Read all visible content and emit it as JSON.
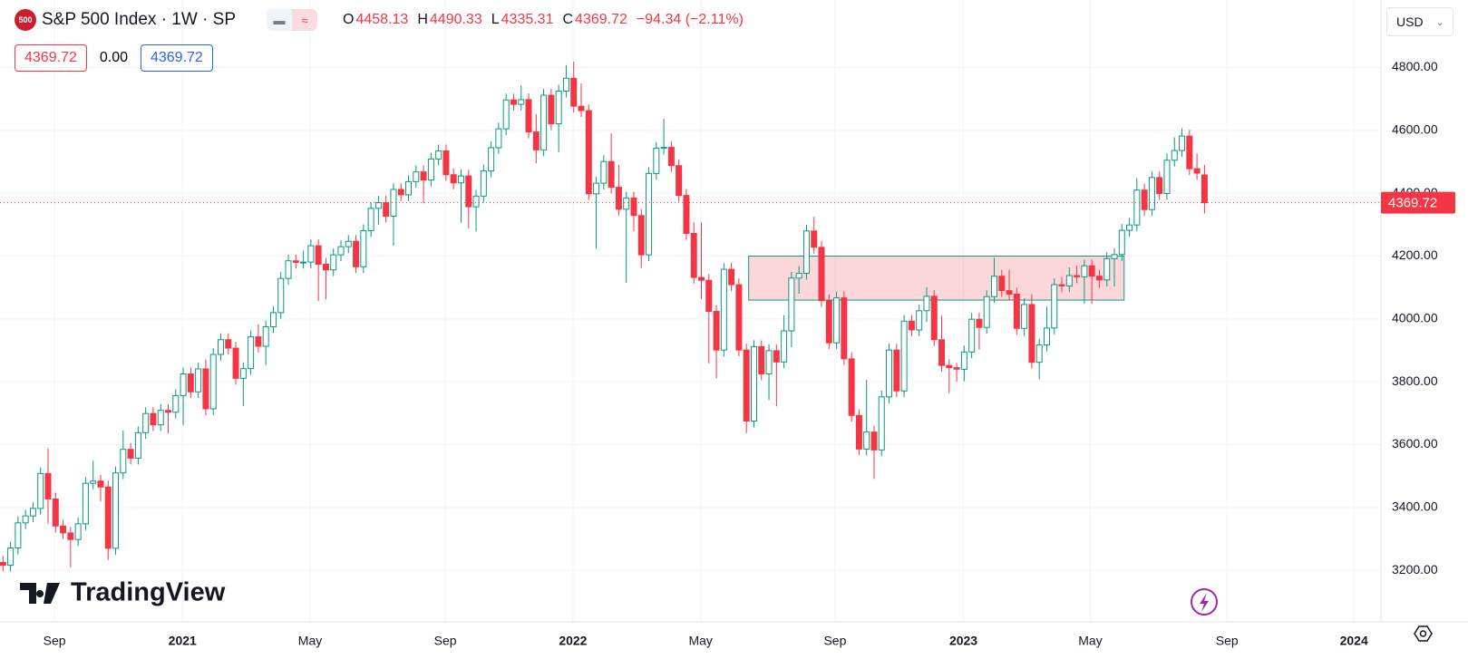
{
  "header": {
    "symbol_icon": "500",
    "title": "S&P 500 Index · 1W · SP",
    "ohlc_labels": [
      "O",
      "H",
      "L",
      "C"
    ],
    "change": "−94.34 (−2.11%)",
    "spread": "0.00",
    "currency": "USD",
    "brand": "TradingView"
  },
  "chart_data": {
    "type": "candlestick",
    "series": [
      {
        "up_color": "#089981",
        "down_color": "#f23645",
        "open": [
          3225,
          3216,
          3271,
          3351,
          3373,
          3397,
          3508,
          3427,
          3341,
          3319,
          3298,
          3348,
          3477,
          3484,
          3465,
          3270,
          3510,
          3585,
          3557,
          3638,
          3699,
          3663,
          3709,
          3703,
          3756,
          3825,
          3768,
          3841,
          3714,
          3887,
          3934,
          3907,
          3811,
          3842,
          3943,
          3913,
          3975,
          4020,
          4129,
          4185,
          4180,
          4181,
          4233,
          4174,
          4156,
          4204,
          4230,
          4247,
          4166,
          4281,
          4352,
          4370,
          4327,
          4412,
          4395,
          4437,
          4468,
          4442,
          4509,
          4535,
          4459,
          4433,
          4455,
          4357,
          4391,
          4471,
          4545,
          4605,
          4697,
          4683,
          4698,
          4595,
          4538,
          4712,
          4621,
          4725,
          4766,
          4677,
          4663,
          4398,
          4432,
          4501,
          4419,
          4349,
          4385,
          4329,
          4204,
          4463,
          4543,
          4546,
          4488,
          4393,
          4272,
          4132,
          4123,
          4024,
          3901,
          4158,
          4109,
          3901,
          3675,
          3912,
          3825,
          3899,
          3863,
          3962,
          4130,
          4145,
          4280,
          4228,
          4058,
          3924,
          4067,
          3873,
          3693,
          3586,
          3640,
          3583,
          3752,
          3901,
          3771,
          3993,
          3965,
          4026,
          4072,
          3934,
          3852,
          3845,
          3840,
          3895,
          3999,
          3973,
          4071,
          4136,
          4090,
          4079,
          3970,
          4046,
          3862,
          3917,
          3971,
          4109,
          4105,
          4138,
          4134,
          4169,
          4136,
          4124,
          4192,
          4205,
          4282,
          4299,
          4410,
          4348,
          4450,
          4399,
          4505,
          4536,
          4582,
          4478,
          4458.13
        ],
        "high": [
          3245,
          3291,
          3371,
          3393,
          3417,
          3528,
          3588,
          3447,
          3361,
          3339,
          3368,
          3497,
          3549,
          3504,
          3485,
          3530,
          3645,
          3605,
          3658,
          3719,
          3719,
          3729,
          3729,
          3776,
          3845,
          3845,
          3861,
          3871,
          3907,
          3954,
          3954,
          3927,
          3862,
          3963,
          3983,
          3995,
          4040,
          4149,
          4205,
          4205,
          4218,
          4253,
          4253,
          4194,
          4224,
          4250,
          4267,
          4267,
          4301,
          4372,
          4392,
          4393,
          4432,
          4432,
          4457,
          4488,
          4488,
          4529,
          4555,
          4555,
          4479,
          4475,
          4475,
          4411,
          4491,
          4565,
          4625,
          4717,
          4717,
          4743,
          4718,
          4652,
          4732,
          4732,
          4745,
          4808,
          4819,
          4749,
          4683,
          4452,
          4521,
          4590,
          4490,
          4405,
          4405,
          4349,
          4483,
          4563,
          4637,
          4566,
          4508,
          4413,
          4308,
          4307,
          4143,
          4044,
          4178,
          4178,
          4129,
          3921,
          3932,
          3932,
          3919,
          3919,
          4012,
          4150,
          4168,
          4300,
          4325,
          4248,
          4078,
          4087,
          4087,
          3893,
          3713,
          3806,
          3660,
          3772,
          3921,
          3921,
          4013,
          4013,
          4046,
          4101,
          4092,
          4010,
          3872,
          3860,
          3915,
          4019,
          4019,
          4091,
          4195,
          4156,
          4156,
          4099,
          4066,
          4079,
          3937,
          4039,
          4129,
          4133,
          4164,
          4169,
          4189,
          4189,
          4156,
          4212,
          4225,
          4302,
          4322,
          4448,
          4430,
          4470,
          4470,
          4527,
          4578,
          4607,
          4602,
          4527,
          4490.33
        ],
        "low": [
          3196,
          3196,
          3251,
          3331,
          3353,
          3377,
          3349,
          3321,
          3299,
          3209,
          3278,
          3328,
          3457,
          3420,
          3233,
          3250,
          3490,
          3537,
          3537,
          3618,
          3643,
          3643,
          3636,
          3683,
          3662,
          3748,
          3748,
          3694,
          3694,
          3867,
          3887,
          3791,
          3723,
          3822,
          3893,
          3853,
          3955,
          4000,
          4109,
          4160,
          4160,
          4161,
          4057,
          4062,
          4136,
          4184,
          4210,
          4146,
          4146,
          4261,
          4300,
          4307,
          4233,
          4375,
          4375,
          4417,
          4368,
          4422,
          4489,
          4439,
          4413,
          4306,
          4288,
          4278,
          4371,
          4451,
          4525,
          4585,
          4663,
          4663,
          4575,
          4495,
          4518,
          4601,
          4531,
          4705,
          4657,
          4643,
          4378,
          4223,
          4412,
          4399,
          4329,
          4115,
          4279,
          4162,
          4184,
          4443,
          4523,
          4468,
          4373,
          4252,
          4112,
          4063,
          3859,
          3811,
          3881,
          4089,
          3881,
          3637,
          3655,
          3805,
          3742,
          3722,
          3843,
          3910,
          4080,
          4125,
          4208,
          4038,
          3904,
          3904,
          3853,
          3673,
          3566,
          3566,
          3491,
          3563,
          3732,
          3751,
          3751,
          3945,
          3945,
          3990,
          3914,
          3832,
          3764,
          3800,
          3802,
          3875,
          3902,
          3953,
          4051,
          4070,
          4059,
          3950,
          3944,
          3842,
          3808,
          3897,
          3951,
          4085,
          4085,
          4114,
          4049,
          4048,
          4099,
          4104,
          4103,
          4185,
          4262,
          4279,
          4328,
          4328,
          4379,
          4379,
          4485,
          4516,
          4458,
          4444,
          4335.31
        ],
        "close": [
          3216,
          3271,
          3351,
          3373,
          3397,
          3508,
          3427,
          3341,
          3319,
          3298,
          3348,
          3477,
          3484,
          3465,
          3270,
          3510,
          3585,
          3557,
          3638,
          3699,
          3663,
          3709,
          3703,
          3756,
          3825,
          3768,
          3841,
          3714,
          3887,
          3934,
          3907,
          3811,
          3842,
          3943,
          3913,
          3975,
          4020,
          4129,
          4185,
          4180,
          4181,
          4233,
          4174,
          4156,
          4204,
          4230,
          4247,
          4166,
          4281,
          4352,
          4370,
          4327,
          4412,
          4395,
          4437,
          4468,
          4442,
          4509,
          4535,
          4459,
          4433,
          4455,
          4357,
          4391,
          4471,
          4545,
          4605,
          4697,
          4683,
          4698,
          4595,
          4538,
          4712,
          4621,
          4725,
          4766,
          4677,
          4663,
          4398,
          4432,
          4501,
          4419,
          4349,
          4385,
          4329,
          4204,
          4463,
          4543,
          4546,
          4488,
          4393,
          4272,
          4132,
          4123,
          4024,
          3901,
          4158,
          4109,
          3901,
          3675,
          3912,
          3825,
          3899,
          3863,
          3962,
          4130,
          4145,
          4280,
          4228,
          4058,
          3924,
          4067,
          3873,
          3693,
          3586,
          3640,
          3583,
          3752,
          3901,
          3771,
          3993,
          3965,
          4026,
          4072,
          3934,
          3852,
          3845,
          3840,
          3895,
          3999,
          3973,
          4071,
          4136,
          4090,
          4079,
          3970,
          4046,
          3862,
          3917,
          3971,
          4109,
          4105,
          4138,
          4134,
          4169,
          4136,
          4124,
          4192,
          4205,
          4282,
          4299,
          4410,
          4348,
          4450,
          4399,
          4505,
          4536,
          4582,
          4478,
          4464,
          4369.72
        ]
      }
    ],
    "zone": {
      "color": "#f23645",
      "border": "#089981",
      "x": [
        99.3,
        149.3
      ],
      "y": [
        4060,
        4200
      ]
    },
    "xlim": [
      -0.4,
      183.5
    ],
    "xticks": [
      {
        "value": 6.86,
        "label": "Sep"
      },
      {
        "value": 23.9,
        "label": "2021"
      },
      {
        "value": 40.9,
        "label": "May"
      },
      {
        "value": 58.9,
        "label": "Sep"
      },
      {
        "value": 75.9,
        "label": "2022"
      },
      {
        "value": 92.9,
        "label": "May"
      },
      {
        "value": 110.8,
        "label": "Sep"
      },
      {
        "value": 127.9,
        "label": "2023"
      },
      {
        "value": 144.8,
        "label": "May"
      },
      {
        "value": 163,
        "label": "Sep"
      },
      {
        "value": 179.9,
        "label": "2024"
      }
    ],
    "ylim": [
      3036,
      5015
    ],
    "yticks": [
      {
        "value": 3200,
        "label": "3200.00"
      },
      {
        "value": 3400,
        "label": "3400.00"
      },
      {
        "value": 3600,
        "label": "3600.00"
      },
      {
        "value": 3800,
        "label": "3800.00"
      },
      {
        "value": 4000,
        "label": "4000.00"
      },
      {
        "value": 4200,
        "label": "4200.00"
      },
      {
        "value": 4400,
        "label": "4400.00"
      },
      {
        "value": 4600,
        "label": "4600.00"
      },
      {
        "value": 4800,
        "label": "4800.00"
      }
    ],
    "grid": true
  }
}
